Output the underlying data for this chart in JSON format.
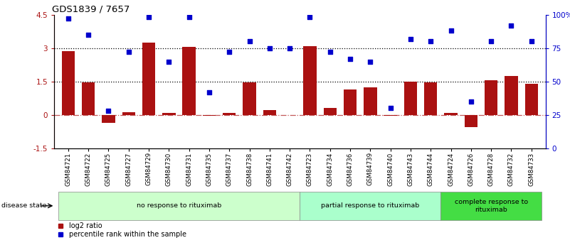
{
  "title": "GDS1839 / 7657",
  "samples": [
    "GSM84721",
    "GSM84722",
    "GSM84725",
    "GSM84727",
    "GSM84729",
    "GSM84730",
    "GSM84731",
    "GSM84735",
    "GSM84737",
    "GSM84738",
    "GSM84741",
    "GSM84742",
    "GSM84723",
    "GSM84734",
    "GSM84736",
    "GSM84739",
    "GSM84740",
    "GSM84743",
    "GSM84744",
    "GSM84724",
    "GSM84726",
    "GSM84728",
    "GSM84732",
    "GSM84733"
  ],
  "log2_ratio": [
    2.85,
    1.45,
    -0.35,
    0.12,
    3.25,
    0.1,
    3.05,
    -0.05,
    0.08,
    1.45,
    0.2,
    0.0,
    3.1,
    0.32,
    1.15,
    1.25,
    -0.05,
    1.5,
    1.45,
    0.1,
    -0.55,
    1.55,
    1.75,
    1.4
  ],
  "percentile": [
    97,
    85,
    28,
    72,
    98,
    65,
    98,
    42,
    72,
    80,
    75,
    75,
    98,
    72,
    67,
    65,
    30,
    82,
    80,
    88,
    35,
    80,
    92,
    80
  ],
  "groups": [
    {
      "label": "no response to rituximab",
      "start": 0,
      "end": 12,
      "color": "#ccffcc"
    },
    {
      "label": "partial response to rituximab",
      "start": 12,
      "end": 19,
      "color": "#aaffcc"
    },
    {
      "label": "complete response to\nrituximab",
      "start": 19,
      "end": 24,
      "color": "#44dd44"
    }
  ],
  "bar_color": "#aa1111",
  "dot_color": "#0000cc",
  "ylim_left": [
    -1.5,
    4.5
  ],
  "ylim_right": [
    0,
    100
  ],
  "yticks_left": [
    -1.5,
    0.0,
    1.5,
    3.0,
    4.5
  ],
  "yticks_right": [
    0,
    25,
    50,
    75,
    100
  ],
  "ytick_labels_right": [
    "0",
    "25",
    "50",
    "75",
    "100%"
  ],
  "hlines_dotted": [
    1.5,
    3.0
  ],
  "hline_dashdot": 0.0,
  "legend_items": [
    {
      "label": "log2 ratio",
      "color": "#aa1111",
      "marker": "s"
    },
    {
      "label": "percentile rank within the sample",
      "color": "#0000cc",
      "marker": "s"
    }
  ],
  "disease_state_label": "disease state",
  "bar_width": 0.65,
  "bg_color": "#ffffff"
}
